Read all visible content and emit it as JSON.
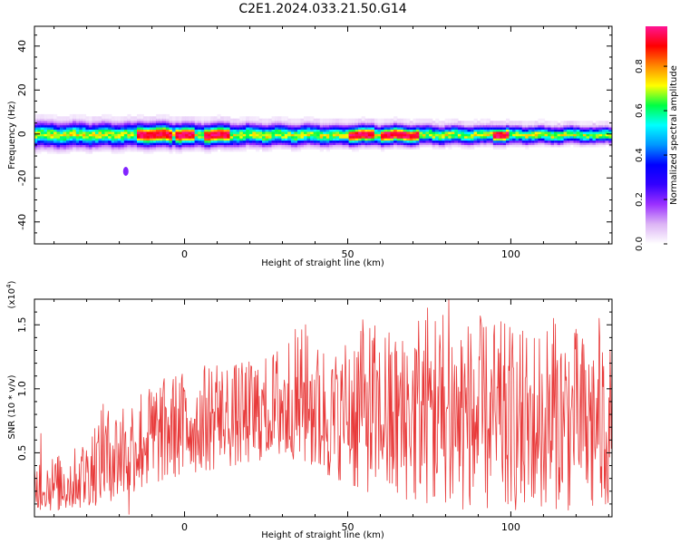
{
  "title": "C2E1.2024.033.21.50.G14",
  "chart_data": [
    {
      "type": "heatmap",
      "xlabel": "Height of straight line (km)",
      "ylabel": "Frequency (Hz)",
      "xlim": [
        -46,
        131
      ],
      "ylim": [
        -50,
        49
      ],
      "xticks": [
        0,
        50,
        100
      ],
      "xtick_labels": [
        "0",
        "50",
        "100"
      ],
      "yticks": [
        -40,
        -20,
        0,
        20,
        40
      ],
      "ytick_labels": [
        "-40",
        "-20",
        "0",
        "20",
        "40"
      ],
      "colorbar": {
        "label": "Normalized spectral amplitude",
        "range": [
          0,
          0.98
        ],
        "ticks": [
          0.0,
          0.2,
          0.4,
          0.6,
          0.8
        ],
        "tick_labels": [
          "0.0",
          "0.2",
          "0.4",
          "0.6",
          "0.8"
        ],
        "colors": [
          "#ffffff",
          "#dcb4f5",
          "#9b30ff",
          "#3300ff",
          "#0000ff",
          "#0096ff",
          "#00ffff",
          "#00ff44",
          "#ffff00",
          "#ff8800",
          "#ff0000",
          "#ff1493"
        ]
      },
      "ridge": {
        "center_hz": 0,
        "spread_hz_left": 8,
        "spread_hz_right": 5,
        "peak_segments_km": [
          [
            -15,
            -4
          ],
          [
            -3,
            3
          ],
          [
            6,
            14
          ],
          [
            50,
            58
          ],
          [
            60,
            72
          ],
          [
            95,
            100
          ]
        ],
        "isolated_blob": {
          "x_km": -18,
          "y_hz": -17
        }
      }
    },
    {
      "type": "line",
      "xlabel": "Height of straight line (km)",
      "ylabel": "SNR (10 * v/v)",
      "y_multiplier_label": "(x10",
      "y_multiplier_exp": "4",
      "y_multiplier_close": ")",
      "xlim": [
        -46,
        131
      ],
      "ylim": [
        0,
        1.7
      ],
      "xticks": [
        0,
        50,
        100
      ],
      "xtick_labels": [
        "0",
        "50",
        "100"
      ],
      "yticks": [
        0.5,
        1.0,
        1.5
      ],
      "ytick_labels": [
        "0.5",
        "1.0",
        "1.5"
      ],
      "color": "#e83a3a",
      "envelope": {
        "x": [
          -46,
          -35,
          -25,
          -15,
          -5,
          5,
          15,
          25,
          35,
          45,
          55,
          65,
          75,
          85,
          95,
          105,
          115,
          125,
          131
        ],
        "lower": [
          0.05,
          0.05,
          0.1,
          0.2,
          0.3,
          0.35,
          0.4,
          0.45,
          0.45,
          0.3,
          0.2,
          0.15,
          0.1,
          0.05,
          0.05,
          0.05,
          0.05,
          0.05,
          0.1
        ],
        "upper": [
          0.45,
          0.5,
          0.85,
          1.0,
          1.1,
          1.2,
          1.2,
          1.25,
          1.5,
          1.3,
          1.55,
          1.45,
          1.7,
          1.6,
          1.55,
          1.45,
          1.55,
          1.45,
          1.35
        ]
      },
      "peaks": [
        {
          "x": 81,
          "y": 1.71
        },
        {
          "x": 37,
          "y": 1.5
        },
        {
          "x": 54,
          "y": 1.45
        },
        {
          "x": 113,
          "y": 1.55
        },
        {
          "x": 127,
          "y": 1.55
        },
        {
          "x": 10,
          "y": 1.18
        },
        {
          "x": -25,
          "y": 0.88
        },
        {
          "x": -44,
          "y": 0.65
        },
        {
          "x": -17,
          "y": 0.02
        }
      ]
    }
  ]
}
